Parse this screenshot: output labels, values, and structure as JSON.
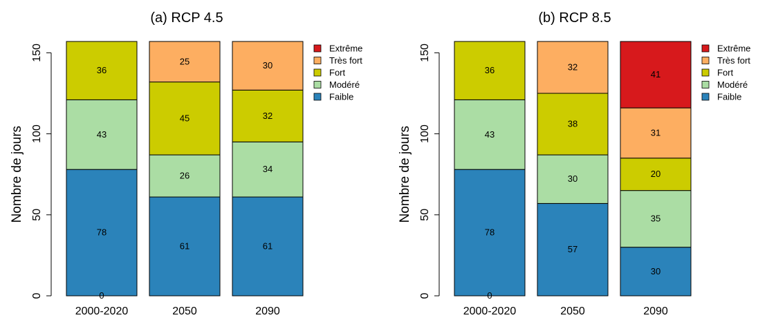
{
  "chart_data": [
    {
      "type": "bar",
      "stacked": true,
      "title": "(a) RCP 4.5",
      "ylabel": "Nombre de jours",
      "ylim": [
        0,
        157
      ],
      "yticks": [
        0,
        50,
        100,
        150
      ],
      "categories": [
        "2000-2020",
        "2050",
        "2090"
      ],
      "legend_position": "right",
      "series": [
        {
          "name": "Faible",
          "color": "#2b83ba",
          "values": [
            78,
            61,
            61
          ]
        },
        {
          "name": "Modéré",
          "color": "#abdda4",
          "values": [
            43,
            26,
            34
          ]
        },
        {
          "name": "Fort",
          "color": "#cccc00",
          "values": [
            36,
            45,
            32
          ]
        },
        {
          "name": "Très fort",
          "color": "#fdae61",
          "values": [
            0,
            25,
            30
          ]
        },
        {
          "name": "Extrême",
          "color": "#d7191c",
          "values": [
            0,
            0,
            0
          ]
        }
      ]
    },
    {
      "type": "bar",
      "stacked": true,
      "title": "(b) RCP 8.5",
      "ylabel": "Nombre de jours",
      "ylim": [
        0,
        157
      ],
      "yticks": [
        0,
        50,
        100,
        150
      ],
      "categories": [
        "2000-2020",
        "2050",
        "2090"
      ],
      "legend_position": "right",
      "series": [
        {
          "name": "Faible",
          "color": "#2b83ba",
          "values": [
            78,
            57,
            30
          ]
        },
        {
          "name": "Modéré",
          "color": "#abdda4",
          "values": [
            43,
            30,
            35
          ]
        },
        {
          "name": "Fort",
          "color": "#cccc00",
          "values": [
            36,
            38,
            20
          ]
        },
        {
          "name": "Très fort",
          "color": "#fdae61",
          "values": [
            0,
            32,
            31
          ]
        },
        {
          "name": "Extrême",
          "color": "#d7191c",
          "values": [
            0,
            0,
            41
          ]
        }
      ]
    }
  ]
}
